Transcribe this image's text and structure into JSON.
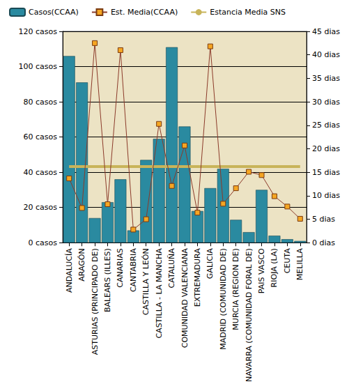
{
  "chart_data": {
    "type": "bar",
    "categories": [
      "ANDALUCÍA",
      "ARAGÓN",
      "ASTURIAS (PRINCIPADO DE)",
      "BALEARS (ILLES)",
      "CANARIAS",
      "CANTABRIA",
      "CASTILLA Y LEÓN",
      "CASTILLA - LA MANCHA",
      "CATALUÑA",
      "COMUNIDAD VALENCIANA",
      "EXTREMADURA",
      "GALICIA",
      "MADRID (COMUNIDAD DE)",
      "MURCIA (REGION DE)",
      "NAVARRA (COMUNIDAD FORAL DE)",
      "PAIS VASCO",
      "RIOJA (LA)",
      "CEUTA",
      "MELILLA"
    ],
    "series": [
      {
        "name": "Casos(CCAA)",
        "type": "bar",
        "color": "#2a8aa0",
        "values": [
          106,
          91,
          14,
          23,
          36,
          7,
          47,
          59,
          111,
          66,
          18,
          31,
          42,
          13,
          6,
          30,
          4,
          2,
          1
        ]
      },
      {
        "name": "Est. Media(CCAA)",
        "type": "line",
        "axis": "y2",
        "color": "#8b3a2a",
        "marker": "square",
        "line_style": "solid",
        "values": [
          13.7,
          7.4,
          42.5,
          8.2,
          41.0,
          2.8,
          5.0,
          25.3,
          12.1,
          20.7,
          6.4,
          41.8,
          8.3,
          11.6,
          15.1,
          14.4,
          9.9,
          7.7,
          5.1
        ]
      },
      {
        "name": "Estancia Media SNS",
        "type": "line",
        "axis": "y2",
        "color": "#c8b45a",
        "marker": "none",
        "line_style": "solid",
        "values": [
          16.2,
          16.2,
          16.2,
          16.2,
          16.2,
          16.2,
          16.2,
          16.2,
          16.2,
          16.2,
          16.2,
          16.2,
          16.2,
          16.2,
          16.2,
          16.2,
          16.2,
          16.2,
          16.2
        ]
      }
    ],
    "ylim": [
      0,
      120
    ],
    "yticks": [
      {
        "value": 0,
        "label": "0 casos"
      },
      {
        "value": 20,
        "label": "20 casos"
      },
      {
        "value": 40,
        "label": "40 casos"
      },
      {
        "value": 60,
        "label": "60 casos"
      },
      {
        "value": 80,
        "label": "80 casos"
      },
      {
        "value": 100,
        "label": "100 casos"
      },
      {
        "value": 120,
        "label": "120 casos"
      }
    ],
    "y2lim": [
      0,
      45
    ],
    "y2ticks": [
      {
        "value": 0,
        "label": "0 dias"
      },
      {
        "value": 5,
        "label": "5 dias"
      },
      {
        "value": 10,
        "label": "10 dias"
      },
      {
        "value": 15,
        "label": "15 dias"
      },
      {
        "value": 20,
        "label": "20 dias"
      },
      {
        "value": 25,
        "label": "25 dias"
      },
      {
        "value": 30,
        "label": "30 dias"
      },
      {
        "value": 35,
        "label": "35 dias"
      },
      {
        "value": 40,
        "label": "40 dias"
      },
      {
        "value": 45,
        "label": "45 dias"
      }
    ],
    "grid": true,
    "legend": "top-left"
  }
}
